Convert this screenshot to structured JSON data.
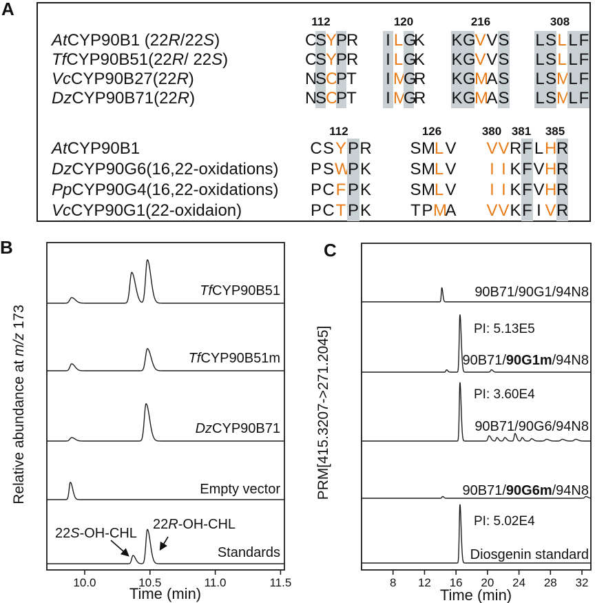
{
  "panels": {
    "A": {
      "label": "A",
      "groups": [
        {
          "headers": [
            "112",
            "120",
            "216",
            "308"
          ],
          "rows": [
            {
              "name": [
                {
                  "t": "At",
                  "i": 1
                },
                {
                  "t": "CYP90B1 (22"
                },
                {
                  "t": "R",
                  "i": 1
                },
                {
                  "t": "/22"
                },
                {
                  "t": "S",
                  "i": 1
                },
                {
                  "t": ")"
                }
              ],
              "seq": [
                {
                  "s": "CSYPR",
                  "bg": [
                    1,
                    3
                  ],
                  "fg": [
                    2
                  ]
                },
                {
                  "s": "ILGK",
                  "bg": [
                    0,
                    2
                  ],
                  "fg": [
                    1
                  ]
                },
                {
                  "s": "KGVVS",
                  "bg": [
                    0,
                    1,
                    4
                  ],
                  "fg": [
                    2
                  ]
                },
                {
                  "s": "LSLLF",
                  "bg": [
                    0,
                    1,
                    3,
                    4
                  ],
                  "fg": [
                    2
                  ]
                }
              ]
            },
            {
              "name": [
                {
                  "t": "Tf",
                  "i": 1
                },
                {
                  "t": "CYP90B51(22"
                },
                {
                  "t": "R",
                  "i": 1
                },
                {
                  "t": "/ 22"
                },
                {
                  "t": "S",
                  "i": 1
                },
                {
                  "t": ")"
                }
              ],
              "seq": [
                {
                  "s": "CSYPR",
                  "bg": [
                    1,
                    3
                  ],
                  "fg": [
                    2
                  ]
                },
                {
                  "s": "ILGK",
                  "bg": [
                    0,
                    2
                  ],
                  "fg": [
                    1
                  ]
                },
                {
                  "s": "KGVVS",
                  "bg": [
                    0,
                    1,
                    4
                  ],
                  "fg": [
                    2
                  ]
                },
                {
                  "s": "LSLLF",
                  "bg": [
                    0,
                    1,
                    3,
                    4
                  ],
                  "fg": [
                    2
                  ]
                }
              ]
            },
            {
              "name": [
                {
                  "t": "Vc",
                  "i": 1
                },
                {
                  "t": "CYP90B27(22"
                },
                {
                  "t": "R",
                  "i": 1
                },
                {
                  "t": ")"
                }
              ],
              "seq": [
                {
                  "s": "NSCPT",
                  "bg": [
                    1,
                    3
                  ],
                  "fg": [
                    2
                  ]
                },
                {
                  "s": "IMGR",
                  "bg": [
                    0,
                    2
                  ],
                  "fg": [
                    1
                  ]
                },
                {
                  "s": "KGMAS",
                  "bg": [
                    0,
                    1,
                    4
                  ],
                  "fg": [
                    2
                  ]
                },
                {
                  "s": "LSMLF",
                  "bg": [
                    0,
                    1,
                    3,
                    4
                  ],
                  "fg": [
                    2
                  ]
                }
              ]
            },
            {
              "name": [
                {
                  "t": "Dz",
                  "i": 1
                },
                {
                  "t": "CYP90B71(22"
                },
                {
                  "t": "R",
                  "i": 1
                },
                {
                  "t": ")"
                }
              ],
              "seq": [
                {
                  "s": "NSCPT",
                  "bg": [
                    1,
                    3
                  ],
                  "fg": [
                    2
                  ]
                },
                {
                  "s": "IMGR",
                  "bg": [
                    0,
                    2
                  ],
                  "fg": [
                    1
                  ]
                },
                {
                  "s": "KGMAS",
                  "bg": [
                    0,
                    1,
                    4
                  ],
                  "fg": [
                    2
                  ]
                },
                {
                  "s": "LSMLF",
                  "bg": [
                    0,
                    1,
                    3,
                    4
                  ],
                  "fg": [
                    2
                  ]
                }
              ]
            }
          ]
        },
        {
          "headers": [
            "112",
            "126",
            "380",
            "381",
            "385"
          ],
          "rows": [
            {
              "name": [
                {
                  "t": "At",
                  "i": 1
                },
                {
                  "t": "CYP90B1"
                }
              ],
              "seq": [
                {
                  "s": "CSYPR",
                  "bg": [
                    3
                  ],
                  "fg": [
                    2
                  ]
                },
                {
                  "s": "SMLV",
                  "bg": [],
                  "fg": [
                    2
                  ]
                },
                {
                  "s": "VVRFLHR",
                  "bg": [
                    3,
                    6
                  ],
                  "fg": [
                    0,
                    1,
                    5
                  ]
                }
              ]
            },
            {
              "name": [
                {
                  "t": "Dz",
                  "i": 1
                },
                {
                  "t": "CYP90G6(16,22-oxidations)"
                }
              ],
              "seq": [
                {
                  "s": "PSWPK",
                  "bg": [
                    3
                  ],
                  "fg": [
                    2
                  ]
                },
                {
                  "s": "SMLV",
                  "bg": [],
                  "fg": [
                    2
                  ]
                },
                {
                  "s": "IIKFVHR",
                  "bg": [
                    3,
                    6
                  ],
                  "fg": [
                    0,
                    1,
                    5
                  ]
                }
              ]
            },
            {
              "name": [
                {
                  "t": "Pp",
                  "i": 1
                },
                {
                  "t": "CYP90G4(16,22-oxidations)"
                }
              ],
              "seq": [
                {
                  "s": "PCFPK",
                  "bg": [
                    3
                  ],
                  "fg": [
                    2
                  ]
                },
                {
                  "s": "SMLV",
                  "bg": [],
                  "fg": [
                    2
                  ]
                },
                {
                  "s": "IIKFVHR",
                  "bg": [
                    3,
                    6
                  ],
                  "fg": [
                    0,
                    1,
                    5
                  ]
                }
              ]
            },
            {
              "name": [
                {
                  "t": "Vc",
                  "i": 1
                },
                {
                  "t": "CYP90G1(22-oxidaion)"
                }
              ],
              "seq": [
                {
                  "s": "PCTPK",
                  "bg": [
                    3
                  ],
                  "fg": [
                    2
                  ]
                },
                {
                  "s": "TPMA",
                  "bg": [],
                  "fg": [
                    2
                  ]
                },
                {
                  "s": "VVKFIVR",
                  "bg": [
                    3,
                    6
                  ],
                  "fg": [
                    0,
                    1,
                    5
                  ]
                }
              ]
            }
          ]
        }
      ]
    },
    "B": {
      "label": "B"
    },
    "C": {
      "label": "C"
    }
  },
  "colors": {
    "highlight_gray": "#c9d0d4",
    "residue_orange": "#e87b17",
    "line": "#1c1c1c"
  },
  "chart_data": [
    {
      "type": "line",
      "panel": "B",
      "title": "GC-MS chromatograms of yeast assays",
      "xlabel": "Time (min)",
      "ylabel": [
        {
          "t": "Relative abundance at "
        },
        {
          "t": "m/z",
          "i": 1
        },
        {
          "t": " 173"
        }
      ],
      "xlim": [
        9.71,
        11.53
      ],
      "xticks": [
        "10.0",
        "10.5",
        "11.0",
        "11.5"
      ],
      "ylim": [
        0,
        100
      ],
      "y_units": "relative intensity (0-100), traces stacked",
      "traces": [
        {
          "label": [
            {
              "t": "Tf",
              "i": 1
            },
            {
              "t": "CYP90B51"
            }
          ],
          "peaks": [
            {
              "t": 9.9,
              "h": 13,
              "w": 0.02
            },
            {
              "t": 10.36,
              "h": 71,
              "w": 0.02
            },
            {
              "t": 10.48,
              "h": 100,
              "w": 0.019
            }
          ]
        },
        {
          "label": [
            {
              "t": "Tf",
              "i": 1
            },
            {
              "t": "CYP90B51m"
            }
          ],
          "peaks": [
            {
              "t": 9.9,
              "h": 16,
              "w": 0.018
            },
            {
              "t": 10.48,
              "h": 51,
              "w": 0.02
            }
          ]
        },
        {
          "label": [
            {
              "t": "Dz",
              "i": 1
            },
            {
              "t": "CYP90B71"
            }
          ],
          "peaks": [
            {
              "t": 9.9,
              "h": 8,
              "w": 0.018
            },
            {
              "t": 10.47,
              "h": 86,
              "w": 0.019
            }
          ]
        },
        {
          "label": [
            {
              "t": "Empty vector"
            }
          ],
          "peaks": [
            {
              "t": 9.89,
              "h": 40,
              "w": 0.013
            }
          ]
        },
        {
          "label": [
            {
              "t": "Standards"
            }
          ],
          "peaks": [
            {
              "t": 10.37,
              "h": 19,
              "w": 0.014
            },
            {
              "t": 10.48,
              "h": 79,
              "w": 0.016
            }
          ]
        }
      ],
      "annotations": [
        {
          "text": [
            {
              "t": "22"
            },
            {
              "t": "S",
              "i": 1
            },
            {
              "t": "-OH-CHL"
            }
          ],
          "peak_t": 10.37
        },
        {
          "text": [
            {
              "t": "22"
            },
            {
              "t": "R",
              "i": 1
            },
            {
              "t": "-OH-CHL"
            }
          ],
          "peak_t": 10.48
        }
      ]
    },
    {
      "type": "line",
      "panel": "C",
      "title": "PRM chromatograms",
      "xlabel": "Time (min)",
      "ylabel": [
        {
          "t": "PRM[415.3207->271.2045]"
        }
      ],
      "xlim": [
        4.0,
        33.14
      ],
      "xticks": [
        "8",
        "12",
        "16",
        "20",
        "24",
        "28",
        "32"
      ],
      "ylim": [
        0,
        100
      ],
      "y_units": "relative intensity (0-100), traces stacked",
      "traces": [
        {
          "label": [
            {
              "t": "90B71/90G1/94N8"
            }
          ],
          "peaks": [
            {
              "t": 14.2,
              "h": 24,
              "w": 0.1
            }
          ]
        },
        {
          "label": [
            {
              "t": "90B71/"
            },
            {
              "t": "90G1m",
              "b": 1
            },
            {
              "t": "/94N8"
            }
          ],
          "pi": "PI: 5.13E5",
          "peaks": [
            {
              "t": 14.8,
              "h": 4,
              "w": 0.12
            },
            {
              "t": 16.5,
              "h": 98,
              "w": 0.13
            },
            {
              "t": 20.5,
              "h": 4,
              "w": 0.15
            }
          ]
        },
        {
          "label": [
            {
              "t": "90B71/90G6/94N8"
            }
          ],
          "pi": "PI: 3.60E4",
          "peaks": [
            {
              "t": 16.5,
              "h": 100,
              "w": 0.12
            },
            {
              "t": 20.2,
              "h": 9,
              "w": 0.18
            },
            {
              "t": 21.2,
              "h": 6,
              "w": 0.15
            },
            {
              "t": 22.2,
              "h": 6,
              "w": 0.18
            },
            {
              "t": 23.5,
              "h": 13,
              "w": 0.15
            },
            {
              "t": 24.4,
              "h": 6,
              "w": 0.15
            },
            {
              "t": 25.6,
              "h": 4,
              "w": 0.2
            },
            {
              "t": 27.5,
              "h": 3,
              "w": 0.25
            },
            {
              "t": 29.5,
              "h": 3,
              "w": 0.25
            },
            {
              "t": 31.2,
              "h": 3,
              "w": 0.25
            }
          ]
        },
        {
          "label": [
            {
              "t": "90B71/"
            },
            {
              "t": "90G6m",
              "b": 1
            },
            {
              "t": "/94N8"
            }
          ],
          "peaks": [
            {
              "t": 14.3,
              "h": 3,
              "w": 0.12
            },
            {
              "t": 32.5,
              "h": 3,
              "w": 0.2
            }
          ]
        },
        {
          "label": [
            {
              "t": "Diosgenin standard"
            }
          ],
          "pi": "PI: 5.02E4",
          "peaks": [
            {
              "t": 16.5,
              "h": 100,
              "w": 0.12
            }
          ]
        }
      ]
    }
  ]
}
